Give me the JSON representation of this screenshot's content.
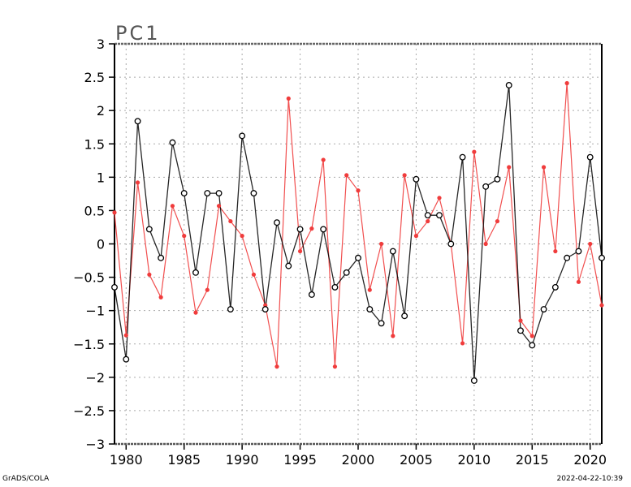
{
  "chart_data": {
    "type": "line",
    "title": "PC1",
    "xlabel": "",
    "ylabel": "",
    "xlim": [
      1979,
      2021
    ],
    "ylim": [
      -3,
      3
    ],
    "xticks": [
      1980,
      1985,
      1990,
      1995,
      2000,
      2005,
      2010,
      2015,
      2020
    ],
    "yticks": [
      -3,
      -2.5,
      -2,
      -1.5,
      -1,
      -0.5,
      0,
      0.5,
      1,
      1.5,
      2,
      2.5,
      3
    ],
    "ytick_labels": [
      "−3",
      "−2.5",
      "−2",
      "−1.5",
      "−1",
      "−0.5",
      "0",
      "0.5",
      "1",
      "1.5",
      "2",
      "2.5",
      "3"
    ],
    "grid": true,
    "x": [
      1979,
      1980,
      1981,
      1982,
      1983,
      1984,
      1985,
      1986,
      1987,
      1988,
      1989,
      1990,
      1991,
      1992,
      1993,
      1994,
      1995,
      1996,
      1997,
      1998,
      1999,
      2000,
      2001,
      2002,
      2003,
      2004,
      2005,
      2006,
      2007,
      2008,
      2009,
      2010,
      2011,
      2012,
      2013,
      2014,
      2015,
      2016,
      2017,
      2018,
      2019,
      2020,
      2021
    ],
    "series": [
      {
        "color": "#000000",
        "marker": "open-circle",
        "values": [
          -0.65,
          -1.73,
          1.84,
          0.22,
          -0.21,
          1.52,
          0.76,
          -0.43,
          0.76,
          0.76,
          -0.98,
          1.62,
          0.76,
          -0.98,
          0.32,
          -0.33,
          0.22,
          -0.76,
          0.22,
          -0.65,
          -0.43,
          -0.21,
          -0.98,
          -1.19,
          -0.11,
          -1.08,
          0.97,
          0.43,
          0.43,
          0.0,
          1.3,
          -2.05,
          0.86,
          0.97,
          2.38,
          -1.3,
          -1.52,
          -0.98,
          -0.65,
          -0.21,
          -0.11,
          1.3,
          -0.21
        ]
      },
      {
        "color": "#f03c3c",
        "marker": "filled-dot",
        "values": [
          0.47,
          -1.37,
          0.92,
          -0.46,
          -0.8,
          0.57,
          0.12,
          -1.03,
          -0.69,
          0.57,
          0.34,
          0.12,
          -0.46,
          -0.92,
          -1.84,
          2.18,
          -0.11,
          0.23,
          1.26,
          -1.84,
          1.03,
          0.8,
          -0.69,
          0.0,
          -1.38,
          1.03,
          0.12,
          0.34,
          0.69,
          0.0,
          -1.49,
          1.38,
          0.0,
          0.34,
          1.15,
          -1.15,
          -1.38,
          1.15,
          -0.11,
          2.41,
          -0.57,
          0.0,
          -0.92
        ]
      }
    ]
  },
  "footer": {
    "left": "GrADS/COLA",
    "right": "2022-04-22-10:39"
  }
}
